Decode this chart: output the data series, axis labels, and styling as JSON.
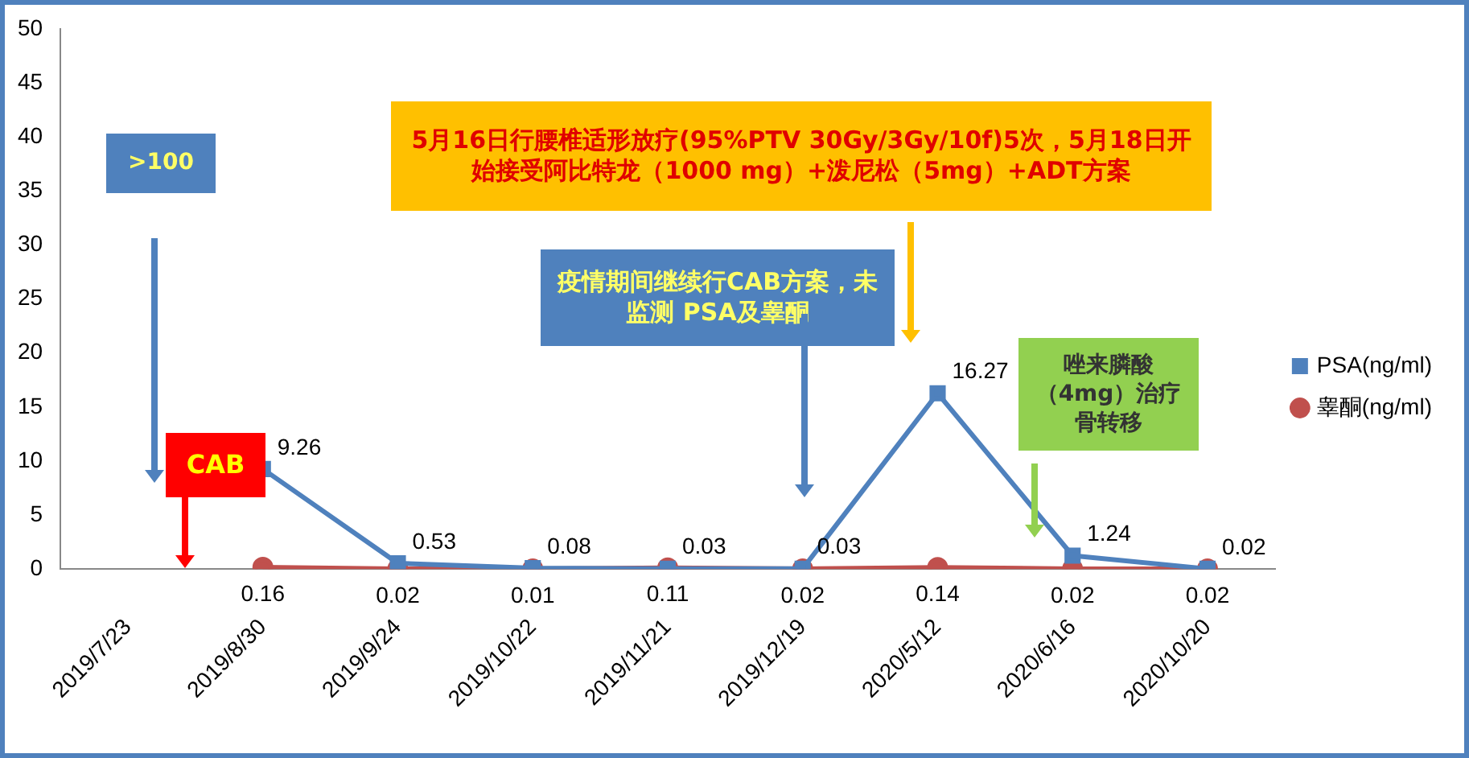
{
  "chart_data": {
    "type": "line",
    "categories": [
      "2019/7/23",
      "2019/8/30",
      "2019/9/24",
      "2019/10/22",
      "2019/11/21",
      "2019/12/19",
      "2020/5/12",
      "2020/6/16",
      "2020/10/20"
    ],
    "series": [
      {
        "name": "PSA(ng/ml)",
        "color": "#4f81bd",
        "marker": "square",
        "values": [
          null,
          9.26,
          0.53,
          0.08,
          0.03,
          0.03,
          16.27,
          1.24,
          0.02
        ]
      },
      {
        "name": "睾酮(ng/ml)",
        "color": "#c0504d",
        "marker": "circle",
        "values": [
          null,
          0.16,
          0.02,
          0.01,
          0.11,
          0.02,
          0.14,
          0.02,
          0.02
        ]
      }
    ],
    "ylim": [
      0,
      50
    ],
    "yticks": [
      0,
      5,
      10,
      15,
      20,
      25,
      30,
      35,
      40,
      45,
      50
    ],
    "grid": false,
    "legend": "right",
    "data_labels": true,
    "annotations": [
      ">100",
      "CAB",
      "5月16日行腰椎适形放疗(95%PTV 30Gy/3Gy/10f)5次，5月18日开始接受阿比特龙（1000 mg）+泼尼松（5mg）+ADT方案",
      "疫情期间继续行CAB方案，未监测 PSA及睾酮",
      "唑来膦酸（4mg）治疗骨转移"
    ]
  }
}
